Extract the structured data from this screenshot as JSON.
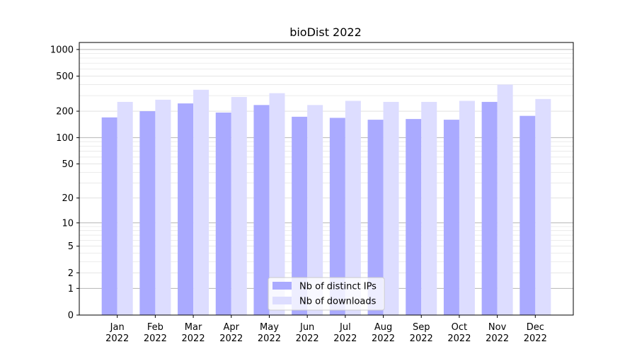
{
  "chart_data": {
    "type": "bar",
    "title": "bioDist 2022",
    "xlabel": "",
    "ylabel": "",
    "yscale": "log(1+y)",
    "ylim": [
      0,
      1200
    ],
    "yticks": [
      0,
      1,
      2,
      5,
      10,
      20,
      50,
      100,
      200,
      500,
      1000
    ],
    "ytick_labels": [
      "0",
      "1",
      "2",
      "5",
      "10",
      "20",
      "50",
      "100",
      "200",
      "500",
      "1000"
    ],
    "grid": "horizontal",
    "legend_position": "bottom-center",
    "categories": [
      "Jan\n2022",
      "Feb\n2022",
      "Mar\n2022",
      "Apr\n2022",
      "May\n2022",
      "Jun\n2022",
      "Jul\n2022",
      "Aug\n2022",
      "Sep\n2022",
      "Oct\n2022",
      "Nov\n2022",
      "Dec\n2022"
    ],
    "series": [
      {
        "name": "Nb of distinct IPs",
        "color": "#aaaaff",
        "values": [
          170,
          200,
          245,
          193,
          235,
          173,
          168,
          160,
          163,
          160,
          255,
          177
        ]
      },
      {
        "name": "Nb of downloads",
        "color": "#ddddff",
        "values": [
          255,
          270,
          350,
          290,
          320,
          235,
          262,
          255,
          255,
          262,
          400,
          275
        ]
      }
    ]
  }
}
